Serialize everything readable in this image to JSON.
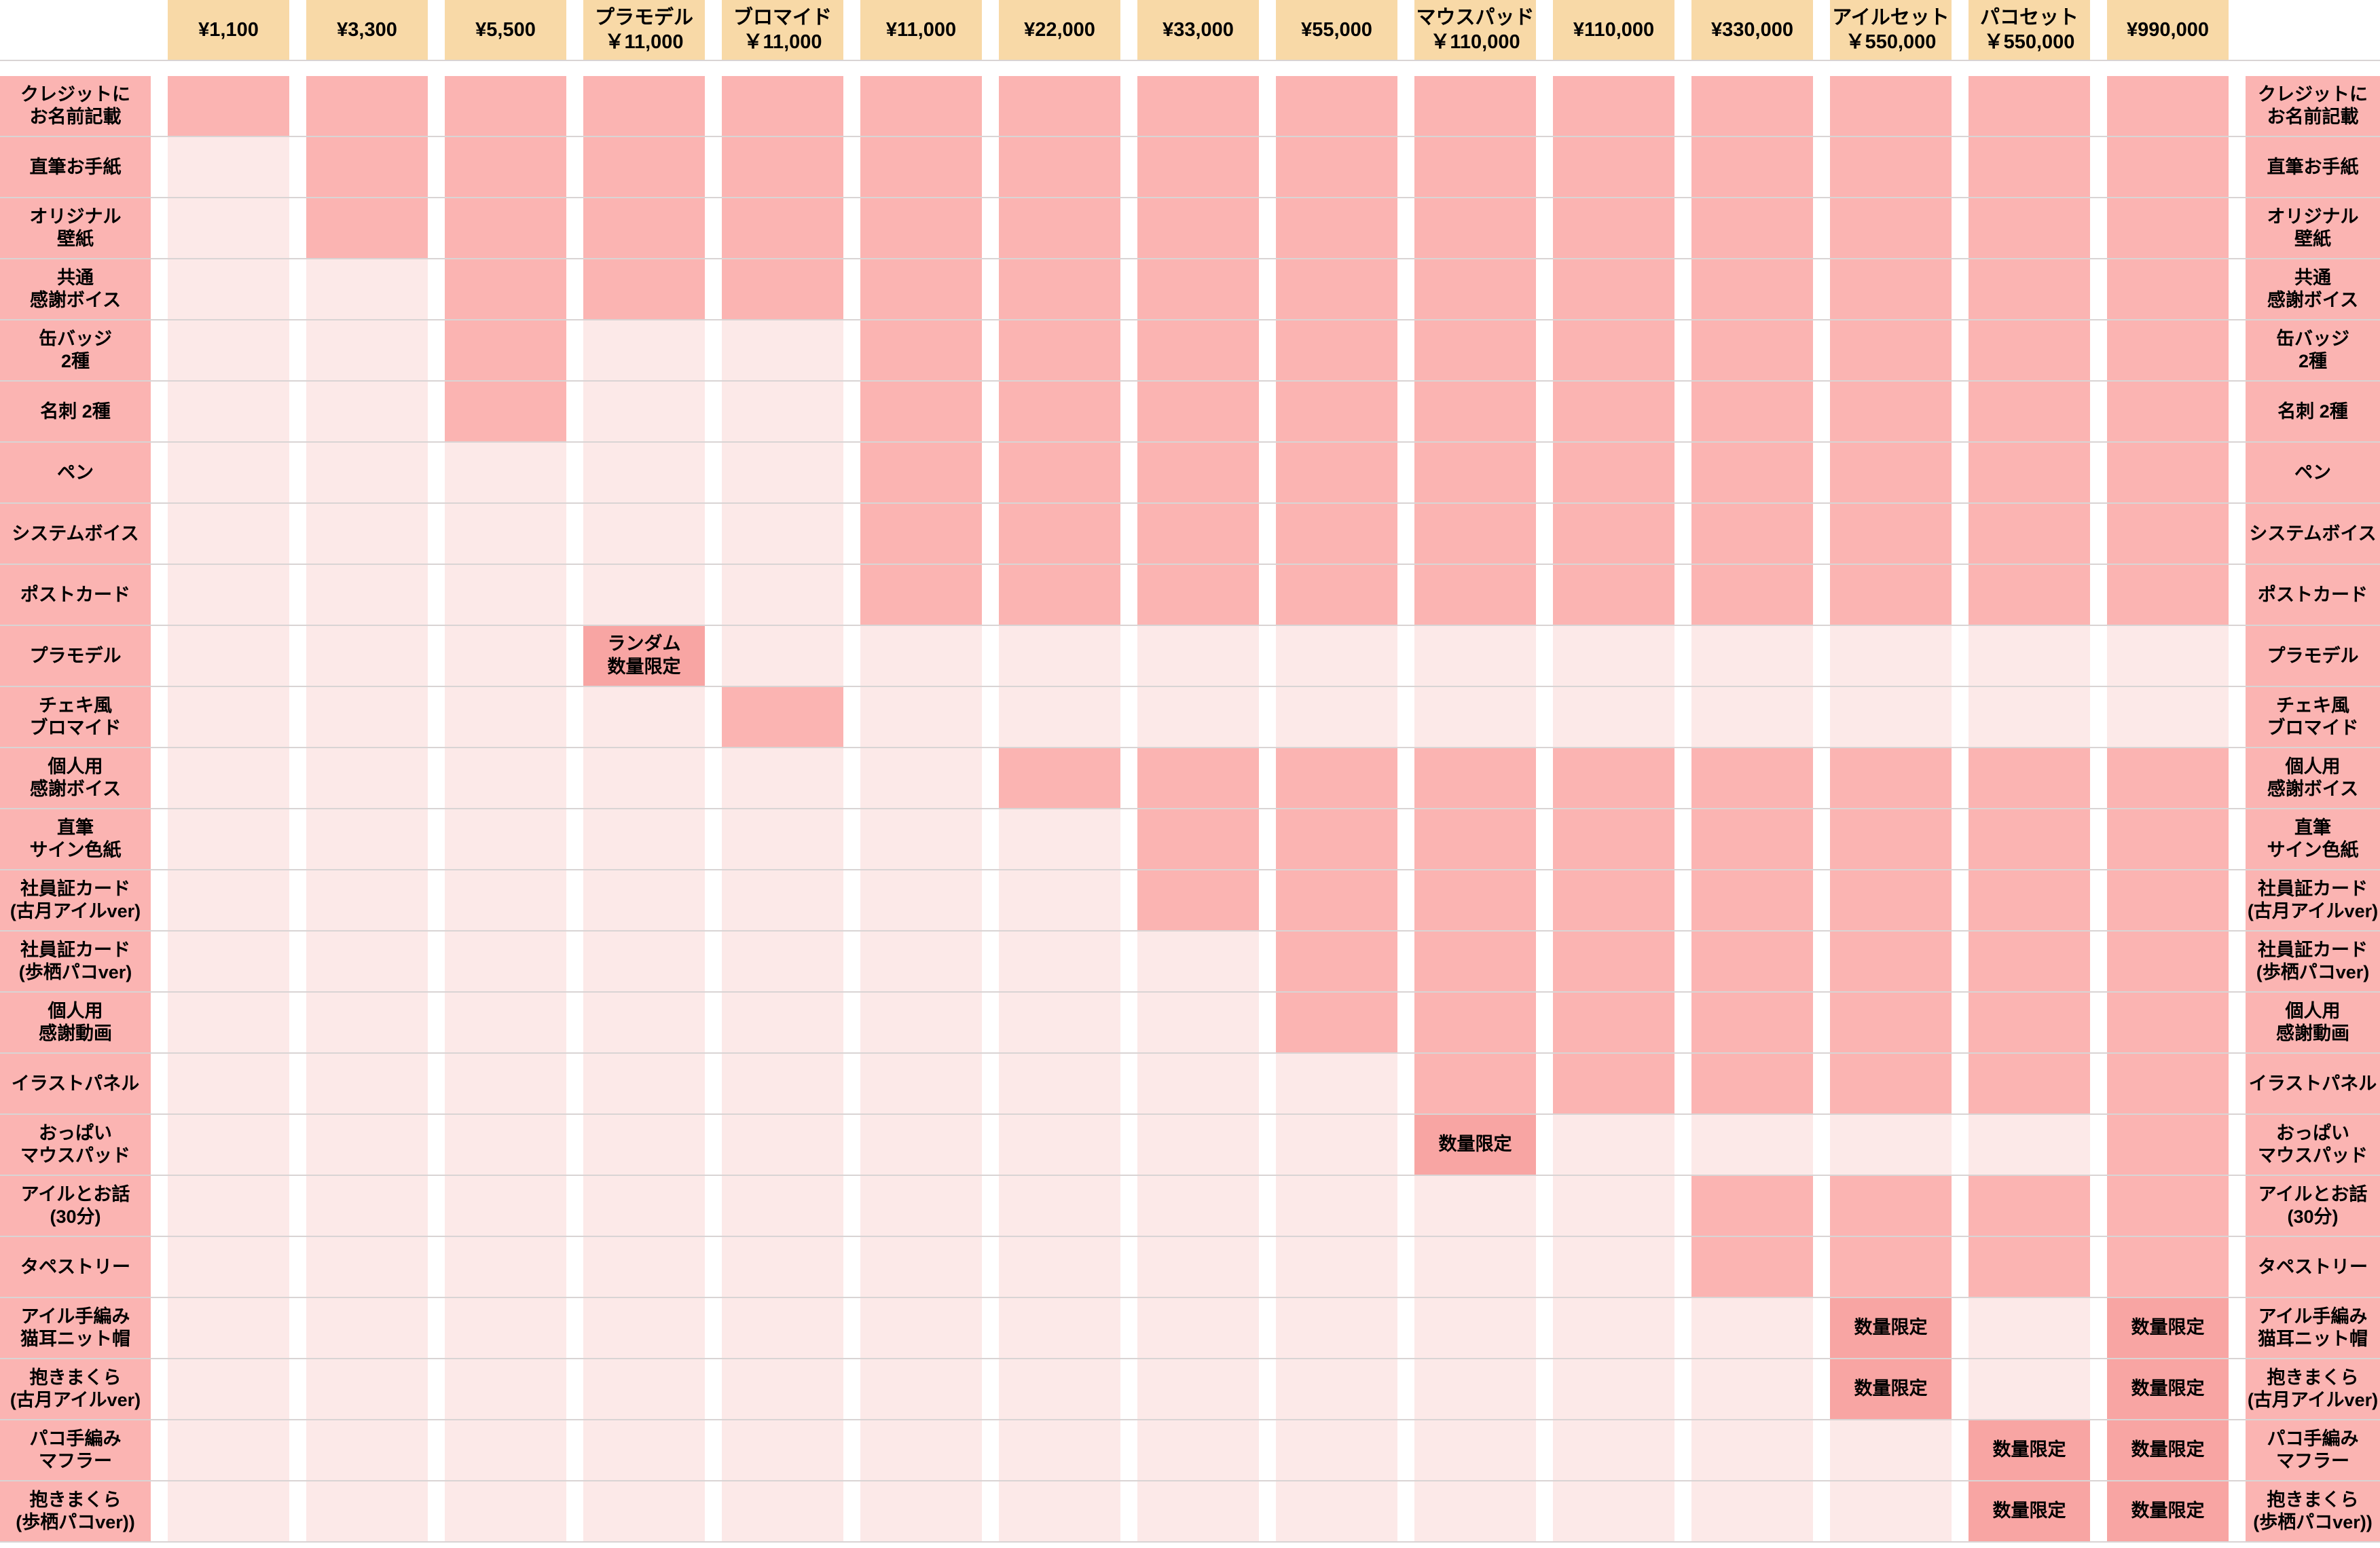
{
  "chart_data": {
    "type": "table",
    "title": "",
    "description_visible_text_only": true,
    "columns": [
      "¥1,100",
      "¥3,300",
      "¥5,500",
      "プラモデル\n￥11,000",
      "ブロマイド\n￥11,000",
      "¥11,000",
      "¥22,000",
      "¥33,000",
      "¥55,000",
      "マウスパッド\n￥110,000",
      "¥110,000",
      "¥330,000",
      "アイルセット\n￥550,000",
      "パコセット\n￥550,000",
      "¥990,000"
    ],
    "cell_codes": {
      "D": "included (dark pink)",
      "": "not included (light pink)",
      "other": "limited-quantity note shown in cell"
    },
    "rows": [
      {
        "label": "クレジットに\nお名前記載",
        "cells": [
          "D",
          "D",
          "D",
          "D",
          "D",
          "D",
          "D",
          "D",
          "D",
          "D",
          "D",
          "D",
          "D",
          "D",
          "D"
        ]
      },
      {
        "label": "直筆お手紙",
        "cells": [
          "",
          "D",
          "D",
          "D",
          "D",
          "D",
          "D",
          "D",
          "D",
          "D",
          "D",
          "D",
          "D",
          "D",
          "D"
        ]
      },
      {
        "label": "オリジナル\n壁紙",
        "cells": [
          "",
          "D",
          "D",
          "D",
          "D",
          "D",
          "D",
          "D",
          "D",
          "D",
          "D",
          "D",
          "D",
          "D",
          "D"
        ]
      },
      {
        "label": "共通\n感謝ボイス",
        "cells": [
          "",
          "",
          "D",
          "D",
          "D",
          "D",
          "D",
          "D",
          "D",
          "D",
          "D",
          "D",
          "D",
          "D",
          "D"
        ]
      },
      {
        "label": "缶バッジ\n2種",
        "cells": [
          "",
          "",
          "D",
          "",
          "",
          "D",
          "D",
          "D",
          "D",
          "D",
          "D",
          "D",
          "D",
          "D",
          "D"
        ]
      },
      {
        "label": "名刺 2種",
        "cells": [
          "",
          "",
          "D",
          "",
          "",
          "D",
          "D",
          "D",
          "D",
          "D",
          "D",
          "D",
          "D",
          "D",
          "D"
        ]
      },
      {
        "label": "ペン",
        "cells": [
          "",
          "",
          "",
          "",
          "",
          "D",
          "D",
          "D",
          "D",
          "D",
          "D",
          "D",
          "D",
          "D",
          "D"
        ]
      },
      {
        "label": "システムボイス",
        "cells": [
          "",
          "",
          "",
          "",
          "",
          "D",
          "D",
          "D",
          "D",
          "D",
          "D",
          "D",
          "D",
          "D",
          "D"
        ]
      },
      {
        "label": "ポストカード",
        "cells": [
          "",
          "",
          "",
          "",
          "",
          "D",
          "D",
          "D",
          "D",
          "D",
          "D",
          "D",
          "D",
          "D",
          "D"
        ]
      },
      {
        "label": "プラモデル",
        "cells": [
          "",
          "",
          "",
          "ランダム\n数量限定",
          "",
          "",
          "",
          "",
          "",
          "",
          "",
          "",
          "",
          "",
          ""
        ]
      },
      {
        "label": "チェキ風\nブロマイド",
        "cells": [
          "",
          "",
          "",
          "",
          "D",
          "",
          "",
          "",
          "",
          "",
          "",
          "",
          "",
          "",
          ""
        ]
      },
      {
        "label": "個人用\n感謝ボイス",
        "cells": [
          "",
          "",
          "",
          "",
          "",
          "",
          "D",
          "D",
          "D",
          "D",
          "D",
          "D",
          "D",
          "D",
          "D"
        ]
      },
      {
        "label": "直筆\nサイン色紙",
        "cells": [
          "",
          "",
          "",
          "",
          "",
          "",
          "",
          "D",
          "D",
          "D",
          "D",
          "D",
          "D",
          "D",
          "D"
        ]
      },
      {
        "label": "社員証カード\n(古月アイルver)",
        "cells": [
          "",
          "",
          "",
          "",
          "",
          "",
          "",
          "D",
          "D",
          "D",
          "D",
          "D",
          "D",
          "D",
          "D"
        ]
      },
      {
        "label": "社員証カード\n(歩栖パコver)",
        "cells": [
          "",
          "",
          "",
          "",
          "",
          "",
          "",
          "",
          "D",
          "D",
          "D",
          "D",
          "D",
          "D",
          "D"
        ]
      },
      {
        "label": "個人用\n感謝動画",
        "cells": [
          "",
          "",
          "",
          "",
          "",
          "",
          "",
          "",
          "D",
          "D",
          "D",
          "D",
          "D",
          "D",
          "D"
        ]
      },
      {
        "label": "イラストパネル",
        "cells": [
          "",
          "",
          "",
          "",
          "",
          "",
          "",
          "",
          "",
          "D",
          "D",
          "D",
          "D",
          "D",
          "D"
        ]
      },
      {
        "label": "おっぱい\nマウスパッド",
        "cells": [
          "",
          "",
          "",
          "",
          "",
          "",
          "",
          "",
          "",
          "数量限定",
          "",
          "",
          "",
          "",
          "D"
        ]
      },
      {
        "label": "アイルとお話\n(30分)",
        "cells": [
          "",
          "",
          "",
          "",
          "",
          "",
          "",
          "",
          "",
          "",
          "",
          "D",
          "D",
          "D",
          "D"
        ]
      },
      {
        "label": "タペストリー",
        "cells": [
          "",
          "",
          "",
          "",
          "",
          "",
          "",
          "",
          "",
          "",
          "",
          "D",
          "D",
          "D",
          "D"
        ]
      },
      {
        "label": "アイル手編み\n猫耳ニット帽",
        "cells": [
          "",
          "",
          "",
          "",
          "",
          "",
          "",
          "",
          "",
          "",
          "",
          "",
          "数量限定",
          "",
          "数量限定"
        ]
      },
      {
        "label": "抱きまくら\n(古月アイルver)",
        "cells": [
          "",
          "",
          "",
          "",
          "",
          "",
          "",
          "",
          "",
          "",
          "",
          "",
          "数量限定",
          "",
          "数量限定"
        ]
      },
      {
        "label": "パコ手編み\nマフラー",
        "cells": [
          "",
          "",
          "",
          "",
          "",
          "",
          "",
          "",
          "",
          "",
          "",
          "",
          "",
          "数量限定",
          "数量限定"
        ]
      },
      {
        "label": "抱きまくら\n(歩栖パコver))",
        "cells": [
          "",
          "",
          "",
          "",
          "",
          "",
          "",
          "",
          "",
          "",
          "",
          "",
          "",
          "数量限定",
          "数量限定"
        ]
      }
    ]
  },
  "colors": {
    "header_bg": "#F8D9A7",
    "included_bg": "#FBB4B2",
    "excluded_bg": "#FCE9E8",
    "limited_bg": "#F8A5A3",
    "row_label_bg": "#FBB4B2",
    "grid_line": "#D9D4D4",
    "background": "#FFFFFF"
  }
}
